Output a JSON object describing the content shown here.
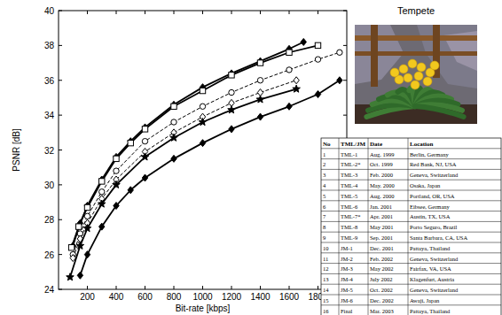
{
  "chart_data": {
    "type": "line",
    "x_label": "Bit-rate [kbps]",
    "y_label": "PSNR [dB]",
    "xlim": [
      0,
      2000
    ],
    "xticks": [
      200,
      400,
      600,
      800,
      1000,
      1200,
      1400,
      1600,
      1800
    ],
    "ylim": [
      24,
      40
    ],
    "yticks": [
      24,
      26,
      28,
      30,
      32,
      34,
      36,
      38,
      40
    ],
    "grid": false,
    "series": [
      {
        "color": "#000000",
        "marker": "diamond",
        "line_style": "solid",
        "x": [
          100,
          150,
          200,
          300,
          400,
          500,
          600,
          800,
          1000,
          1200,
          1400,
          1600,
          1700
        ],
        "values": [
          26.5,
          27.8,
          28.8,
          30.3,
          31.6,
          32.5,
          33.3,
          34.6,
          35.6,
          36.4,
          37.1,
          37.8,
          38.2
        ]
      },
      {
        "color": "#000000",
        "marker": "square",
        "line_style": "solid",
        "x": [
          90,
          140,
          200,
          300,
          400,
          500,
          600,
          800,
          1000,
          1200,
          1400,
          1600,
          1800
        ],
        "values": [
          26.4,
          27.6,
          28.7,
          30.2,
          31.5,
          32.4,
          33.2,
          34.5,
          35.4,
          36.3,
          37.0,
          37.6,
          38.0
        ]
      },
      {
        "color": "#000000",
        "marker": "circle",
        "line_style": "dashed",
        "x": [
          100,
          150,
          200,
          300,
          400,
          600,
          800,
          1000,
          1200,
          1400,
          1600,
          1800,
          1950
        ],
        "values": [
          26.0,
          27.2,
          28.2,
          29.6,
          30.8,
          32.5,
          33.6,
          34.5,
          35.3,
          36.0,
          36.6,
          37.2,
          37.6
        ]
      },
      {
        "color": "#000000",
        "marker": "open-diamond",
        "line_style": "dashed",
        "x": [
          100,
          150,
          200,
          300,
          400,
          600,
          800,
          1000,
          1200,
          1400,
          1650
        ],
        "values": [
          25.8,
          26.9,
          27.8,
          29.2,
          30.3,
          31.9,
          33.0,
          33.9,
          34.7,
          35.3,
          36.0
        ]
      },
      {
        "color": "#000000",
        "marker": "star",
        "line_style": "solid",
        "x": [
          80,
          150,
          200,
          300,
          400,
          600,
          800,
          1000,
          1200,
          1400,
          1650
        ],
        "values": [
          24.7,
          26.5,
          27.5,
          28.9,
          30.0,
          31.6,
          32.7,
          33.6,
          34.3,
          34.9,
          35.5
        ]
      },
      {
        "color": "#000000",
        "marker": "diamond",
        "line_style": "solid",
        "x": [
          150,
          200,
          300,
          400,
          500,
          600,
          800,
          1000,
          1200,
          1400,
          1600,
          1800,
          1950
        ],
        "values": [
          24.8,
          26.0,
          27.6,
          28.8,
          29.7,
          30.4,
          31.5,
          32.4,
          33.2,
          33.9,
          34.5,
          35.2,
          36.0
        ]
      }
    ]
  },
  "image": {
    "title": "Tempete"
  },
  "table": {
    "header": [
      "No",
      "TML/JM",
      "Date",
      "Location"
    ],
    "rows": [
      [
        1,
        "TML-1",
        "Aug. 1999",
        "Berlin, Germany"
      ],
      [
        2,
        "TML-2*",
        "Oct. 1999",
        "Red Bank, NJ, USA"
      ],
      [
        3,
        "TML-3",
        "Feb. 2000",
        "Geneva, Switzerland"
      ],
      [
        4,
        "TML-4",
        "May. 2000",
        "Osaka, Japan"
      ],
      [
        5,
        "TML-5",
        "Aug. 2000",
        "Portland, OR, USA"
      ],
      [
        6,
        "TML-6",
        "Jan. 2001",
        "Eibsee, Germany"
      ],
      [
        7,
        "TML-7*",
        "Apr. 2001",
        "Austin, TX, USA"
      ],
      [
        8,
        "TML-8",
        "May 2001",
        "Porto Seguro, Brazil"
      ],
      [
        9,
        "TML-9",
        "Sep. 2001",
        "Santa Barbara, CA, USA"
      ],
      [
        10,
        "JM-1",
        "Dec. 2001",
        "Pattaya, Thailand"
      ],
      [
        11,
        "JM-2",
        "Feb. 2002",
        "Geneva, Switzerland"
      ],
      [
        12,
        "JM-3",
        "May 2002",
        "Fairfax, VA, USA"
      ],
      [
        13,
        "JM-4",
        "July 2002",
        "Klagenfurt, Austria"
      ],
      [
        14,
        "JM-5",
        "Oct. 2002",
        "Geneva, Switzerland"
      ],
      [
        15,
        "JM-6",
        "Dec. 2002",
        "Awaji, Japan"
      ],
      [
        16,
        "Final",
        "Mar. 2003",
        "Pattaya, Thailand"
      ]
    ]
  }
}
